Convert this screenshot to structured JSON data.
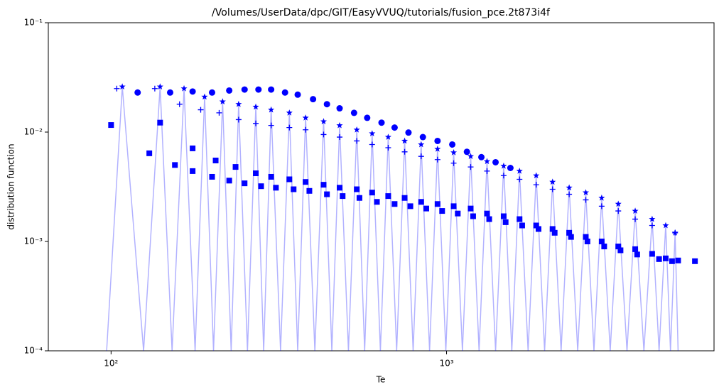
{
  "chart_data": {
    "type": "scatter",
    "title": "/Volumes/UserData/dpc/GIT/EasyVVUQ/tutorials/fusion_pce.2t873i4f",
    "x_label": "Te",
    "y_label": "distribution function",
    "x_scale": "log",
    "y_scale": "log",
    "xlim": [
      65,
      6270
    ],
    "ylim": [
      0.0001,
      0.1
    ],
    "xticks": [
      {
        "value": 100,
        "label": "10²"
      },
      {
        "value": 1000,
        "label": "10³"
      }
    ],
    "yticks": [
      {
        "value": 0.0001,
        "label": "10⁻⁴"
      },
      {
        "value": 0.001,
        "label": "10⁻³"
      },
      {
        "value": 0.01,
        "label": "10⁻²"
      },
      {
        "value": 0.1,
        "label": "10⁻¹"
      }
    ],
    "series": [
      {
        "style": "line",
        "color": "#0000ff",
        "opacity": 0.3,
        "x": [
          97,
          108,
          125,
          140,
          152,
          165,
          178,
          190,
          202,
          215,
          228,
          240,
          255,
          270,
          285,
          300,
          320,
          340,
          360,
          380,
          405,
          430,
          455,
          480,
          510,
          540,
          570,
          600,
          635,
          670,
          710,
          750,
          795,
          840,
          890,
          940,
          995,
          1050,
          1115,
          1180,
          1250,
          1320,
          1400,
          1480,
          1565,
          1650,
          1750,
          1850,
          1960,
          2070,
          2195,
          2320,
          2460,
          2600,
          2750,
          2900,
          3075,
          3250,
          3450,
          3650,
          3875,
          4100,
          4300,
          4500,
          4650,
          4800,
          4900
        ],
        "values": [
          0.0001,
          0.026,
          0.0001,
          0.026,
          0.0001,
          0.025,
          0.0001,
          0.021,
          0.0001,
          0.019,
          0.0001,
          0.018,
          0.0001,
          0.017,
          0.0001,
          0.016,
          0.0001,
          0.015,
          0.0001,
          0.0135,
          0.0001,
          0.0125,
          0.0001,
          0.0115,
          0.0001,
          0.0105,
          0.0001,
          0.0097,
          0.0001,
          0.009,
          0.0001,
          0.0083,
          0.0001,
          0.0077,
          0.0001,
          0.007,
          0.0001,
          0.0065,
          0.0001,
          0.006,
          0.0001,
          0.0054,
          0.0001,
          0.0049,
          0.0001,
          0.0044,
          0.0001,
          0.004,
          0.0001,
          0.0035,
          0.0001,
          0.0031,
          0.0001,
          0.0028,
          0.0001,
          0.0025,
          0.0001,
          0.0022,
          0.0001,
          0.0019,
          0.0001,
          0.0016,
          0.0001,
          0.0014,
          0.0001,
          0.0012,
          0.0001
        ]
      },
      {
        "style": "marker",
        "marker": "circle",
        "color": "#0000ff",
        "x": [
          120,
          150,
          175,
          200,
          225,
          250,
          275,
          300,
          330,
          360,
          400,
          440,
          480,
          530,
          580,
          640,
          700,
          770,
          850,
          940,
          1040,
          1150,
          1270,
          1400,
          1550
        ],
        "values": [
          0.023,
          0.023,
          0.0235,
          0.023,
          0.024,
          0.0245,
          0.0245,
          0.0245,
          0.023,
          0.022,
          0.02,
          0.018,
          0.0165,
          0.015,
          0.0135,
          0.0122,
          0.011,
          0.0099,
          0.009,
          0.0083,
          0.0077,
          0.0066,
          0.0059,
          0.0053,
          0.0047
        ]
      },
      {
        "style": "marker",
        "marker": "star",
        "color": "#0000ff",
        "x": [
          108,
          140,
          165,
          190,
          215,
          240,
          270,
          300,
          340,
          380,
          430,
          480,
          540,
          600,
          670,
          750,
          840,
          940,
          1050,
          1180,
          1320,
          1480,
          1650,
          1850,
          2070,
          2320,
          2600,
          2900,
          3250,
          3650,
          4100,
          4500,
          4800
        ],
        "values": [
          0.026,
          0.026,
          0.025,
          0.021,
          0.019,
          0.018,
          0.017,
          0.016,
          0.015,
          0.0135,
          0.0125,
          0.0115,
          0.0105,
          0.0097,
          0.009,
          0.0083,
          0.0077,
          0.007,
          0.0065,
          0.006,
          0.0054,
          0.0049,
          0.0044,
          0.004,
          0.0035,
          0.0031,
          0.0028,
          0.0025,
          0.0022,
          0.0019,
          0.0016,
          0.0014,
          0.0012
        ]
      },
      {
        "style": "marker",
        "marker": "plus",
        "color": "#0000ff",
        "x": [
          104,
          135,
          160,
          185,
          210,
          240,
          270,
          300,
          340,
          380,
          430,
          480,
          540,
          600,
          670,
          750,
          840,
          940,
          1050,
          1180,
          1320,
          1480,
          1650,
          1850,
          2070,
          2320,
          2600,
          2900,
          3250,
          3650,
          4100,
          4800
        ],
        "values": [
          0.025,
          0.025,
          0.018,
          0.016,
          0.015,
          0.013,
          0.012,
          0.0115,
          0.011,
          0.0105,
          0.0095,
          0.009,
          0.0083,
          0.0077,
          0.0072,
          0.0066,
          0.006,
          0.0056,
          0.0052,
          0.0048,
          0.0044,
          0.004,
          0.0037,
          0.0033,
          0.003,
          0.0027,
          0.0024,
          0.0021,
          0.0019,
          0.0016,
          0.0014,
          0.0012
        ]
      },
      {
        "style": "marker",
        "marker": "square",
        "color": "#0000ff",
        "x": [
          100,
          140,
          175,
          205,
          235,
          270,
          300,
          340,
          380,
          430,
          480,
          540,
          600,
          670,
          750,
          840,
          940,
          1050,
          1180,
          1320,
          1480,
          1650,
          1850,
          2070,
          2320,
          2600,
          2900,
          3250,
          3650,
          4100,
          4500,
          4900,
          5500
        ],
        "values": [
          0.0116,
          0.0122,
          0.0071,
          0.0055,
          0.0048,
          0.0042,
          0.0039,
          0.0037,
          0.0035,
          0.0033,
          0.0031,
          0.003,
          0.0028,
          0.0026,
          0.0025,
          0.0023,
          0.0022,
          0.0021,
          0.002,
          0.0018,
          0.0017,
          0.0016,
          0.0014,
          0.0013,
          0.0012,
          0.0011,
          0.001,
          0.0009,
          0.00085,
          0.00077,
          0.0007,
          0.00067,
          0.00066
        ]
      },
      {
        "style": "marker",
        "marker": "square",
        "color": "#0000ff",
        "x": [
          130,
          155,
          175,
          200,
          225,
          250,
          280,
          310,
          350,
          390,
          440,
          490,
          550,
          620,
          700,
          780,
          870,
          970,
          1080,
          1200,
          1340,
          1500,
          1680,
          1880,
          2100,
          2350,
          2630,
          2950,
          3300,
          3700,
          4300,
          4700
        ],
        "values": [
          0.0064,
          0.005,
          0.0044,
          0.0039,
          0.0036,
          0.0034,
          0.0032,
          0.0031,
          0.003,
          0.0029,
          0.0027,
          0.0026,
          0.0025,
          0.0023,
          0.0022,
          0.0021,
          0.002,
          0.0019,
          0.0018,
          0.0017,
          0.0016,
          0.0015,
          0.0014,
          0.0013,
          0.0012,
          0.0011,
          0.001,
          0.0009,
          0.00083,
          0.00076,
          0.00069,
          0.00066
        ]
      }
    ]
  }
}
